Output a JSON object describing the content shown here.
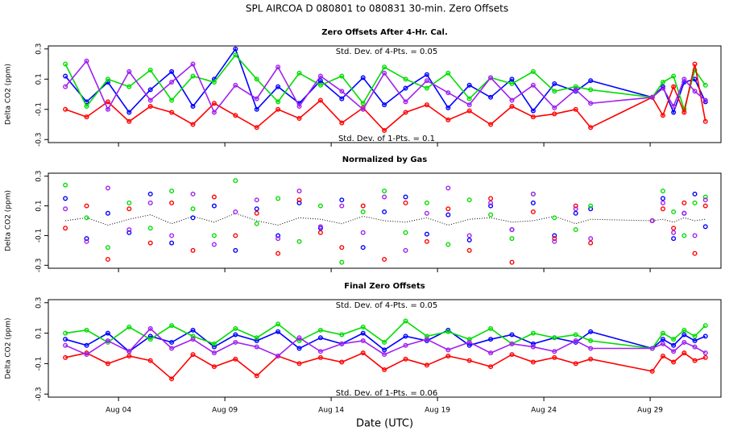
{
  "title": "SPL   AIRCOA D   080801 to 080831   30-min. Zero Offsets",
  "chart_data": [
    {
      "type": "line",
      "title": "Zero Offsets After 4-Hr. Cal.",
      "y_label": "Delta CO2 (ppm)",
      "annotations": [
        "Std. Dev. of 4-Pts. = 0.05",
        "Std. Dev. of 1-Pts. = 0.1"
      ],
      "xlim": [
        0.7,
        32.33
      ],
      "xticks": [
        4,
        9,
        14,
        19,
        24,
        29
      ],
      "ylim": [
        -0.32,
        0.32
      ],
      "yticks": [
        -0.3,
        -0.1,
        0.1,
        0.3
      ],
      "x": [
        1.5,
        2.5,
        3.5,
        4.5,
        5.5,
        6.5,
        7.5,
        8.5,
        9.5,
        10.5,
        11.5,
        12.5,
        13.5,
        14.5,
        15.5,
        16.5,
        17.5,
        18.5,
        19.5,
        20.5,
        21.5,
        22.5,
        23.5,
        24.5,
        25.5,
        26.2,
        29.1,
        29.6,
        30.1,
        30.6,
        31.1,
        31.6
      ],
      "series": [
        {
          "color": "#0000ff",
          "values": [
            0.12,
            -0.05,
            0.08,
            -0.12,
            0.03,
            0.15,
            -0.08,
            0.1,
            0.3,
            -0.1,
            0.05,
            -0.06,
            0.09,
            -0.03,
            0.11,
            -0.07,
            0.04,
            0.13,
            -0.09,
            0.06,
            -0.02,
            0.1,
            -0.11,
            0.07,
            0.02,
            0.09,
            -0.02,
            0.05,
            -0.12,
            0.08,
            0.1,
            -0.05
          ]
        },
        {
          "color": "#00dd00",
          "values": [
            0.2,
            -0.08,
            0.1,
            0.05,
            0.16,
            -0.04,
            0.12,
            0.08,
            0.26,
            0.1,
            -0.05,
            0.14,
            0.06,
            0.12,
            -0.06,
            0.18,
            0.1,
            0.04,
            0.14,
            -0.03,
            0.11,
            0.07,
            0.15,
            0.02,
            0.05,
            0.03,
            -0.02,
            0.08,
            0.12,
            -0.1,
            0.16,
            0.06
          ]
        },
        {
          "color": "#ff0000",
          "values": [
            -0.1,
            -0.15,
            -0.05,
            -0.18,
            -0.08,
            -0.12,
            -0.2,
            -0.06,
            -0.14,
            -0.22,
            -0.1,
            -0.16,
            -0.04,
            -0.19,
            -0.09,
            -0.24,
            -0.12,
            -0.07,
            -0.17,
            -0.11,
            -0.2,
            -0.08,
            -0.15,
            -0.13,
            -0.1,
            -0.22,
            -0.02,
            -0.14,
            0.05,
            -0.12,
            0.2,
            -0.18
          ]
        },
        {
          "color": "#a020f0",
          "values": [
            0.05,
            0.22,
            -0.1,
            0.15,
            -0.04,
            0.08,
            0.2,
            -0.12,
            0.06,
            -0.03,
            0.18,
            -0.08,
            0.12,
            0.02,
            -0.1,
            0.14,
            -0.05,
            0.09,
            0.01,
            -0.07,
            0.11,
            -0.04,
            0.06,
            -0.09,
            0.03,
            -0.06,
            -0.02,
            0.04,
            -0.08,
            0.1,
            0.02,
            -0.04
          ]
        }
      ]
    },
    {
      "type": "line",
      "title": "Normalized by Gas",
      "y_label": "Delta CO2 (ppm)",
      "xlim": [
        0.7,
        32.33
      ],
      "xticks": [
        4,
        9,
        14,
        19,
        24,
        29
      ],
      "ylim": [
        -0.32,
        0.32
      ],
      "yticks": [
        -0.3,
        -0.1,
        0.1,
        0.3
      ],
      "x": [
        1.5,
        2.5,
        3.5,
        4.5,
        5.5,
        6.5,
        7.5,
        8.5,
        9.5,
        10.5,
        11.5,
        12.5,
        13.5,
        14.5,
        15.5,
        16.5,
        17.5,
        18.5,
        19.5,
        20.5,
        21.5,
        22.5,
        23.5,
        24.5,
        25.5,
        26.2,
        29.1,
        29.6,
        30.1,
        30.6,
        31.1,
        31.6
      ],
      "series": [
        {
          "color": "#000000",
          "line_style": "dotted",
          "markers": false,
          "values": [
            0,
            0.02,
            -0.03,
            0.01,
            0.04,
            -0.02,
            0.03,
            -0.01,
            0.05,
            0,
            -0.03,
            0.02,
            0.01,
            -0.02,
            0.03,
            0,
            -0.01,
            0.02,
            -0.03,
            0.01,
            0.02,
            -0.01,
            0,
            0.03,
            -0.02,
            0.01,
            0,
            0.01,
            -0.01,
            0.02,
            0,
            0.01
          ]
        },
        {
          "color": "#0000ff",
          "markers_only": true,
          "values": [
            0.15,
            -0.12,
            0.05,
            -0.08,
            0.18,
            -0.15,
            0.02,
            0.1,
            -0.2,
            0.08,
            -0.1,
            0.12,
            -0.05,
            0.14,
            -0.18,
            0.06,
            0.16,
            -0.09,
            0.04,
            -0.13,
            0.1,
            -0.06,
            0.12,
            -0.1,
            0.05,
            0.08,
            0,
            0.15,
            -0.12,
            0.05,
            0.18,
            -0.04
          ]
        },
        {
          "color": "#00dd00",
          "markers_only": true,
          "values": [
            0.24,
            0.02,
            -0.18,
            0.12,
            -0.05,
            0.2,
            0.08,
            -0.1,
            0.27,
            -0.02,
            0.15,
            -0.14,
            0.1,
            -0.28,
            0.06,
            0.2,
            -0.08,
            0.12,
            -0.16,
            0.14,
            0.04,
            -0.12,
            0.18,
            0.02,
            -0.06,
            0.1,
            0,
            0.2,
            0.06,
            -0.1,
            0.12,
            0.16
          ]
        },
        {
          "color": "#ff0000",
          "markers_only": true,
          "values": [
            -0.05,
            0.1,
            -0.26,
            0.08,
            -0.15,
            0.12,
            -0.2,
            0.16,
            -0.1,
            0.05,
            -0.22,
            0.14,
            -0.08,
            -0.18,
            0.1,
            -0.26,
            0.12,
            -0.14,
            0.08,
            -0.2,
            0.15,
            -0.28,
            0.06,
            -0.12,
            0.1,
            -0.15,
            0,
            0.08,
            -0.05,
            0.12,
            -0.22,
            0.1
          ]
        },
        {
          "color": "#a020f0",
          "markers_only": true,
          "values": [
            0.08,
            -0.14,
            0.22,
            -0.06,
            0.12,
            -0.1,
            0.18,
            -0.16,
            0.06,
            0.14,
            -0.12,
            0.2,
            -0.04,
            0.1,
            -0.08,
            0.16,
            -0.2,
            0.05,
            0.22,
            -0.1,
            0.12,
            -0.06,
            0.18,
            -0.14,
            0.08,
            -0.12,
            0,
            0.12,
            -0.08,
            0.05,
            -0.1,
            0.14
          ]
        }
      ]
    },
    {
      "type": "line",
      "title": "Final Zero Offsets",
      "y_label": "Delta CO2 (ppm)",
      "x_label": "Date (UTC)",
      "annotations": [
        "Std. Dev. of 4-Pts. = 0.05",
        "Std. Dev. of 1-Pts. = 0.06"
      ],
      "xlim": [
        0.7,
        32.33
      ],
      "xticks": [
        {
          "value": 4,
          "label": "Aug 04"
        },
        {
          "value": 9,
          "label": "Aug 09"
        },
        {
          "value": 14,
          "label": "Aug 14"
        },
        {
          "value": 19,
          "label": "Aug 19"
        },
        {
          "value": 24,
          "label": "Aug 24"
        },
        {
          "value": 29,
          "label": "Aug 29"
        }
      ],
      "ylim": [
        -0.32,
        0.32
      ],
      "yticks": [
        -0.3,
        -0.1,
        0.1,
        0.3
      ],
      "x": [
        1.5,
        2.5,
        3.5,
        4.5,
        5.5,
        6.5,
        7.5,
        8.5,
        9.5,
        10.5,
        11.5,
        12.5,
        13.5,
        14.5,
        15.5,
        16.5,
        17.5,
        18.5,
        19.5,
        20.5,
        21.5,
        22.5,
        23.5,
        24.5,
        25.5,
        26.2,
        29.1,
        29.6,
        30.1,
        30.6,
        31.1,
        31.6
      ],
      "series": [
        {
          "color": "#0000ff",
          "values": [
            0.06,
            0.02,
            0.1,
            -0.02,
            0.08,
            0.04,
            0.12,
            0.01,
            0.09,
            0.05,
            0.11,
            0,
            0.07,
            0.03,
            0.1,
            -0.01,
            0.08,
            0.05,
            0.12,
            0.02,
            0.06,
            0.09,
            0.03,
            0.07,
            0.04,
            0.11,
            0,
            0.06,
            0.02,
            0.09,
            0.05,
            0.08
          ]
        },
        {
          "color": "#00dd00",
          "values": [
            0.1,
            0.12,
            0.04,
            0.14,
            0.06,
            0.15,
            0.08,
            0.03,
            0.13,
            0.07,
            0.16,
            0.05,
            0.12,
            0.09,
            0.14,
            0.04,
            0.18,
            0.08,
            0.11,
            0.06,
            0.13,
            0.03,
            0.1,
            0.07,
            0.09,
            0.05,
            0,
            0.1,
            0.06,
            0.12,
            0.08,
            0.15
          ]
        },
        {
          "color": "#ff0000",
          "values": [
            -0.06,
            -0.03,
            -0.1,
            -0.05,
            -0.08,
            -0.2,
            -0.04,
            -0.12,
            -0.07,
            -0.18,
            -0.05,
            -0.1,
            -0.06,
            -0.09,
            -0.03,
            -0.14,
            -0.07,
            -0.11,
            -0.05,
            -0.08,
            -0.12,
            -0.04,
            -0.09,
            -0.06,
            -0.1,
            -0.07,
            -0.15,
            -0.05,
            -0.09,
            -0.03,
            -0.08,
            -0.06
          ]
        },
        {
          "color": "#a020f0",
          "values": [
            0.02,
            -0.04,
            0.05,
            -0.02,
            0.13,
            0,
            0.06,
            -0.03,
            0.04,
            0.01,
            -0.05,
            0.07,
            -0.02,
            0.03,
            0.05,
            -0.04,
            0.02,
            0.06,
            -0.01,
            0.04,
            -0.03,
            0.03,
            0.01,
            -0.02,
            0.05,
            0,
            0,
            0.03,
            -0.02,
            0.04,
            0.01,
            -0.03
          ]
        }
      ]
    }
  ]
}
